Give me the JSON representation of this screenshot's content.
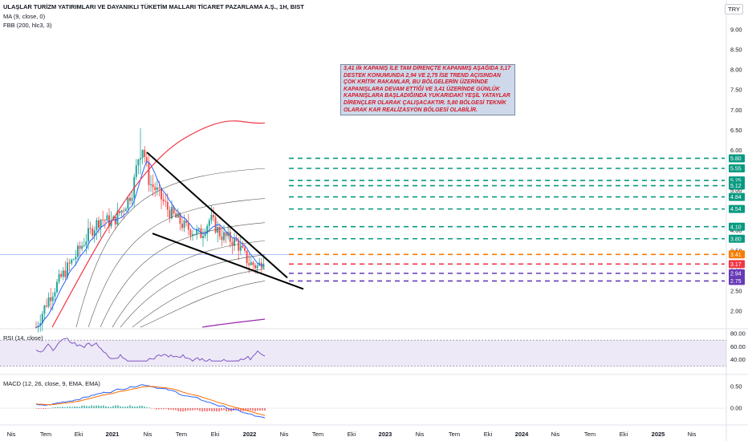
{
  "title": "ULAŞLAR TURİZM YATIRIMLARI VE DAYANIKLI TÜKETİM MALLARI TİCARET PAZARLAMA A.Ş., 1H, BIST",
  "indicators": [
    "MA (9, close, 0)",
    "FBB (200, hlc3, 3)"
  ],
  "currency": "TRY",
  "annotation": "3,41 ilk KAPANIŞ İLE TAM DİRENÇTE KAPANMIŞ AŞAĞIDA 3,17 DESTEK KONUMUNDA 2,94 VE 2,75 İSE TREND AÇISINDAN ÇOK KRİTİK RAKAMLAR, BU BÖLGELERİN ÜZERİNDE KAPANIŞLARA DEVAM ETTİĞİ VE 3,41 ÜZERİNDE GÜNLÜK KAPANIŞLARA BAŞLADIĞINDA YUKARIDAKİ YEŞİL YATAYLAR DİRENÇLER OLARAK ÇALIŞACAKTIR. 5,80 BÖLGESİ TEKNİK OLARAK KAR REALİZASYON BÖLGESİ OLABİLİR.",
  "rsi_label": "RSI (14, close)",
  "macd_label": "MACD (12, 26, close, 9, EMA, EMA)",
  "colors": {
    "up": "#26a69a",
    "down": "#ef5350",
    "ma": "#2962ff",
    "fbb_upper": "#f23645",
    "fbb_lower": "#9c27b0",
    "rsi": "#7e57c2",
    "macd": "#2962ff",
    "signal": "#ff6d00",
    "resistance": "#089981",
    "current": "#f57c00",
    "support": "#f23645",
    "critical": "#673ab7"
  },
  "chart_data": {
    "type": "candlestick",
    "price_axis": {
      "ticks": [
        "9.00",
        "8.50",
        "8.00",
        "7.50",
        "7.00",
        "6.50",
        "6.00",
        "5.50",
        "5.00",
        "4.50",
        "4.00",
        "3.50",
        "3.00",
        "2.50",
        "2.00"
      ],
      "range": [
        1.6,
        9.5
      ]
    },
    "time_axis": [
      "Nis",
      "Tem",
      "Eki",
      "2021",
      "Nis",
      "Tem",
      "Eki",
      "2022",
      "Nis",
      "Tem",
      "Eki",
      "2023",
      "Nis",
      "Tem",
      "Eki",
      "2024",
      "Nis",
      "Tem",
      "Eki",
      "2025",
      "Nis"
    ],
    "levels": [
      {
        "value": 5.8,
        "label": "5.80",
        "kind": "resistance"
      },
      {
        "value": 5.55,
        "label": "5.55",
        "kind": "resistance"
      },
      {
        "value": 5.25,
        "label": "5.25",
        "kind": "resistance"
      },
      {
        "value": 5.12,
        "label": "5.12",
        "kind": "resistance"
      },
      {
        "value": 4.84,
        "label": "4.84",
        "kind": "resistance"
      },
      {
        "value": 4.54,
        "label": "4.54",
        "kind": "resistance"
      },
      {
        "value": 4.1,
        "label": "4.10",
        "kind": "resistance"
      },
      {
        "value": 3.8,
        "label": "3.80",
        "kind": "resistance"
      },
      {
        "value": 3.41,
        "label": "3.41",
        "kind": "current"
      },
      {
        "value": 3.17,
        "label": "3.17",
        "kind": "support"
      },
      {
        "value": 2.94,
        "label": "2.94",
        "kind": "critical"
      },
      {
        "value": 2.75,
        "label": "2.75",
        "kind": "critical"
      }
    ],
    "last_price_tag": "3.41",
    "rsi": {
      "ticks": [
        "80.00",
        "60.00",
        "40.00"
      ],
      "range": [
        20,
        85
      ],
      "band": [
        30,
        70
      ]
    },
    "macd": {
      "ticks": [
        "0.50",
        "0.00"
      ],
      "range": [
        -0.35,
        0.72
      ]
    }
  }
}
